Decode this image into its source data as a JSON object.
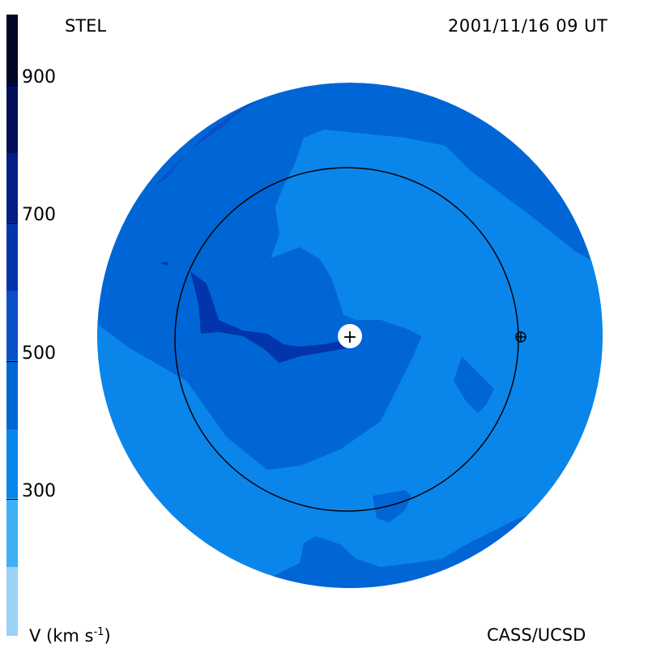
{
  "header": {
    "source": "STEL",
    "timestamp": "2001/11/16 09 UT"
  },
  "footer": {
    "units_label": "V (km s",
    "units_exponent": "-1",
    "units_close": ")",
    "credit": "CASS/UCSD"
  },
  "colorbar": {
    "min": 100,
    "max": 1000,
    "step": 100,
    "tick_labels": [
      "900",
      "700",
      "500",
      "300"
    ],
    "colors": [
      "#9ad2f7",
      "#3fb0f5",
      "#0a86ea",
      "#0066d6",
      "#0a4fc6",
      "#0234ac",
      "#061e8a",
      "#040f5a",
      "#020628"
    ]
  },
  "map": {
    "center_marker": "+",
    "earth_marker": "⊕",
    "colors": {
      "v300_400": "#0a86ea",
      "v400_500": "#0066d6",
      "v500_600": "#0a4fc6",
      "v600_700": "#0234ac"
    }
  }
}
